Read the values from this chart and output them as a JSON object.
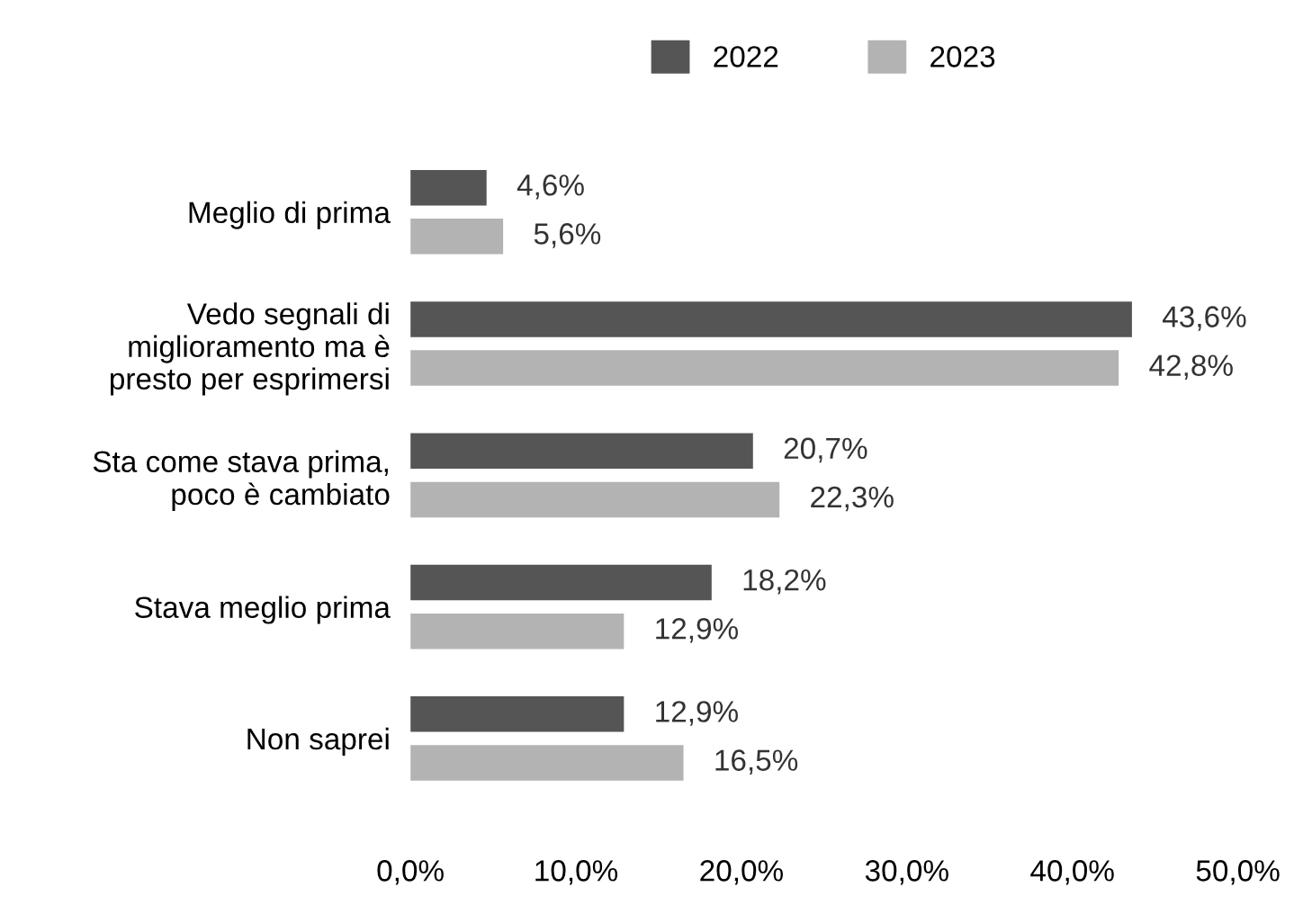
{
  "chart_data": {
    "type": "bar",
    "orientation": "horizontal",
    "categories": [
      "Meglio di prima",
      "Vedo segnali di\nmiglioramento ma è\npresto per esprimersi",
      "Sta come stava prima,\npoco è cambiato",
      "Stava meglio prima",
      "Non saprei"
    ],
    "series": [
      {
        "name": "2022",
        "color": "#555555",
        "values": [
          4.6,
          43.6,
          20.7,
          18.2,
          12.9
        ],
        "value_labels": [
          "4,6%",
          "43,6%",
          "20,7%",
          "18,2%",
          "12,9%"
        ]
      },
      {
        "name": "2023",
        "color": "#b3b3b3",
        "values": [
          5.6,
          42.8,
          22.3,
          12.9,
          16.5
        ],
        "value_labels": [
          "5,6%",
          "42,8%",
          "22,3%",
          "12,9%",
          "16,5%"
        ]
      }
    ],
    "xlim": [
      0,
      50
    ],
    "xticks": [
      {
        "value": 0,
        "label": "0,0%"
      },
      {
        "value": 10,
        "label": "10,0%"
      },
      {
        "value": 20,
        "label": "20,0%"
      },
      {
        "value": 30,
        "label": "30,0%"
      },
      {
        "value": 40,
        "label": "40,0%"
      },
      {
        "value": 50,
        "label": "50,0%"
      }
    ],
    "grid": false,
    "legend": "top"
  }
}
